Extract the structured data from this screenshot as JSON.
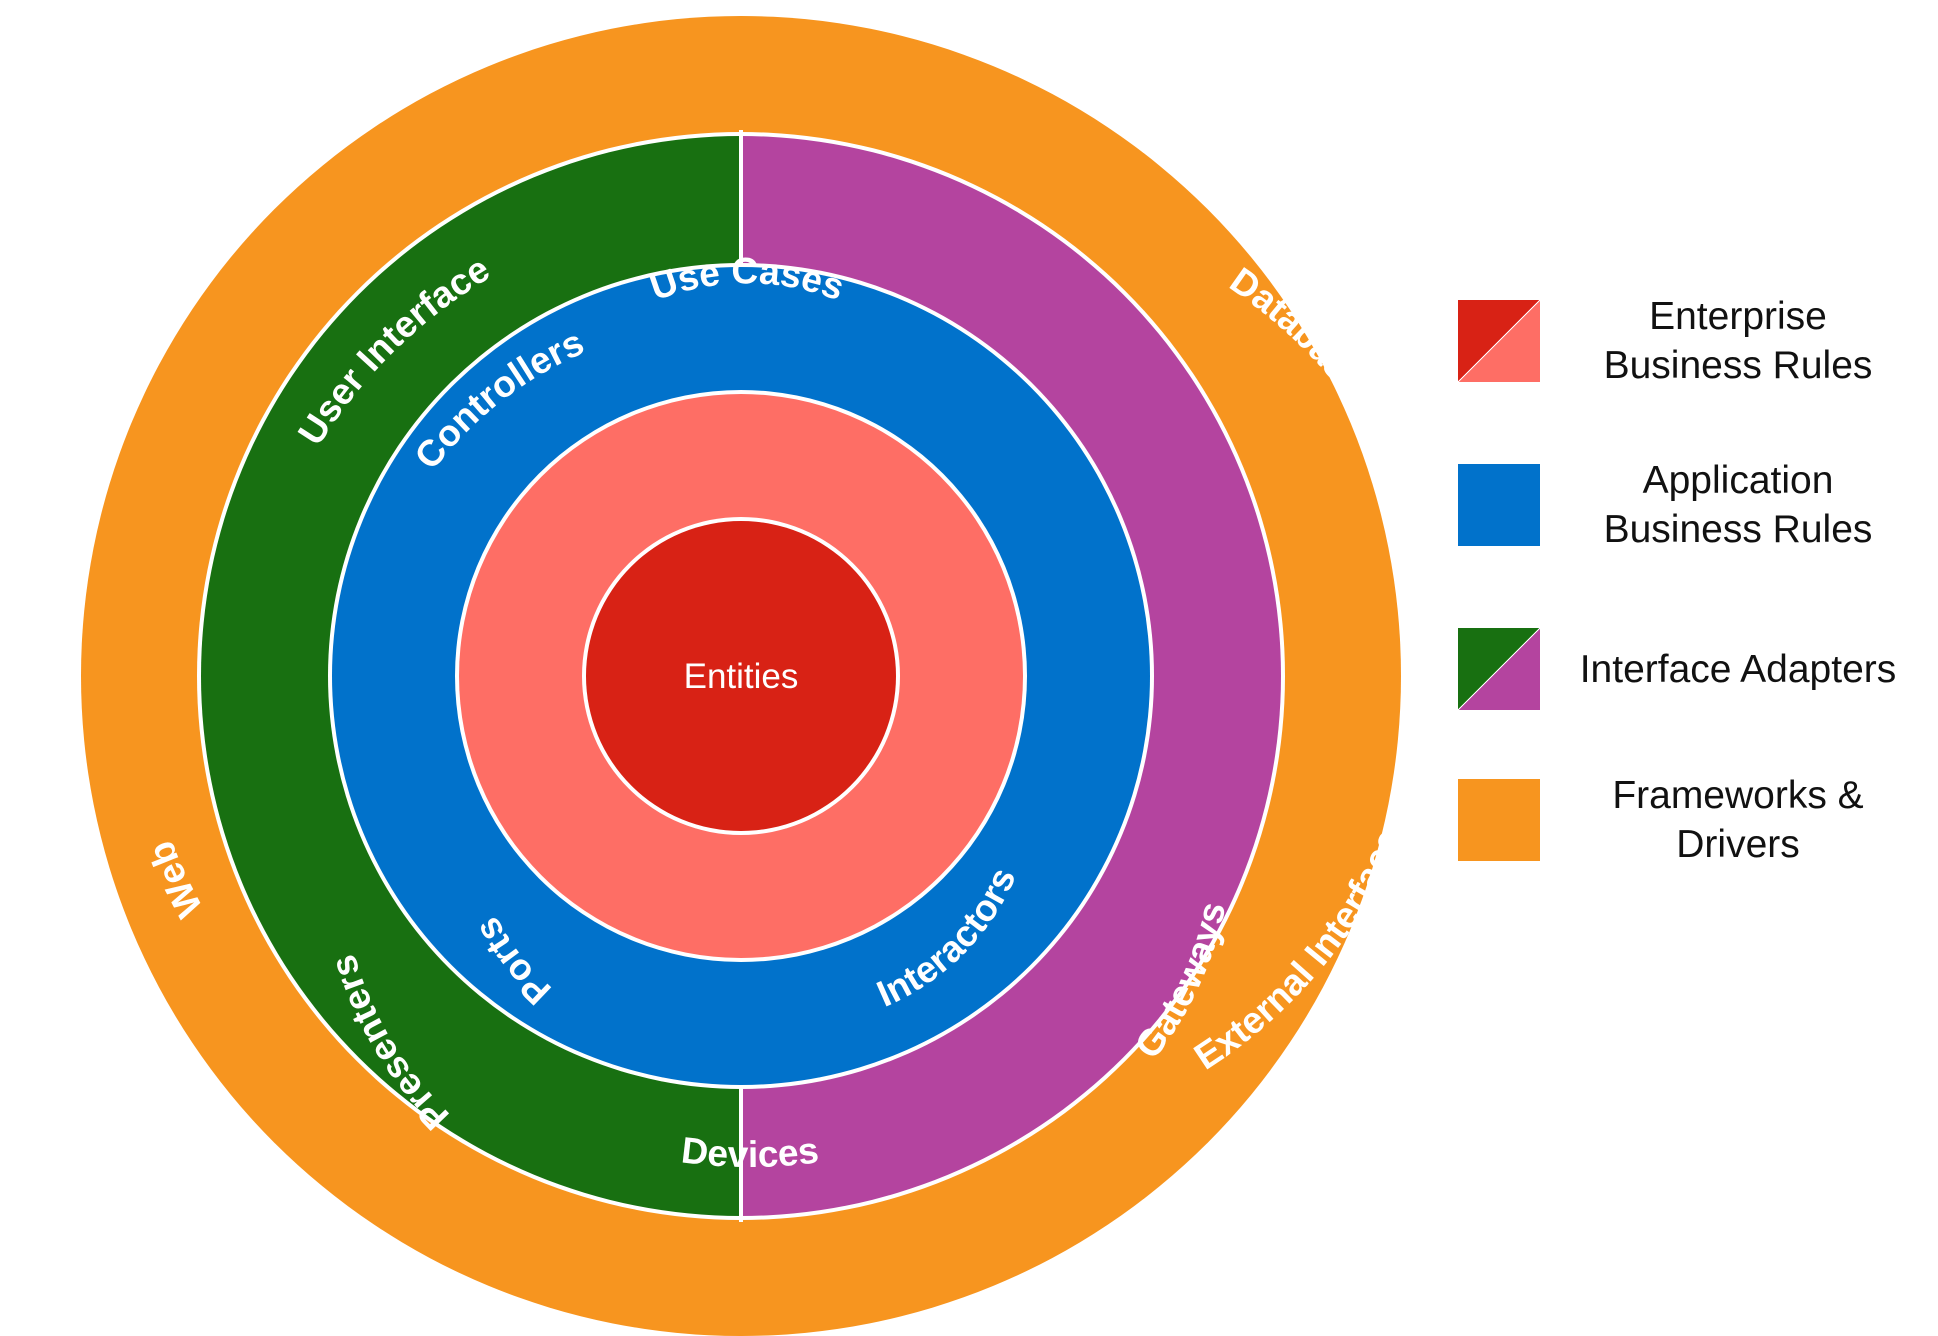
{
  "diagram": {
    "colors": {
      "frameworks": "#f7951f",
      "adapters_left": "#187011",
      "adapters_right": "#b4449f",
      "application": "#0172cb",
      "enterprise_light": "#fe6e65",
      "enterprise_core": "#d82215",
      "divider": "#ffffff"
    },
    "rings": {
      "frameworks": {
        "labels": [
          "User Interface",
          "Database",
          "Web",
          "External Interfaces",
          "Devices"
        ]
      },
      "adapters": {
        "labels": [
          "Controllers",
          "Presenters",
          "Gateways"
        ]
      },
      "application": {
        "labels": [
          "Use Cases",
          "Ports",
          "Interactors"
        ]
      },
      "core": {
        "label": "Entities"
      }
    }
  },
  "legend": {
    "items": [
      {
        "label": "Enterprise\nBusiness Rules",
        "colors": [
          "#d82215",
          "#fe6e65"
        ]
      },
      {
        "label": "Application\nBusiness Rules",
        "colors": [
          "#0172cb"
        ]
      },
      {
        "label": "Interface Adapters",
        "colors": [
          "#187011",
          "#b4449f"
        ]
      },
      {
        "label": "Frameworks &\nDrivers",
        "colors": [
          "#f7951f"
        ]
      }
    ]
  }
}
